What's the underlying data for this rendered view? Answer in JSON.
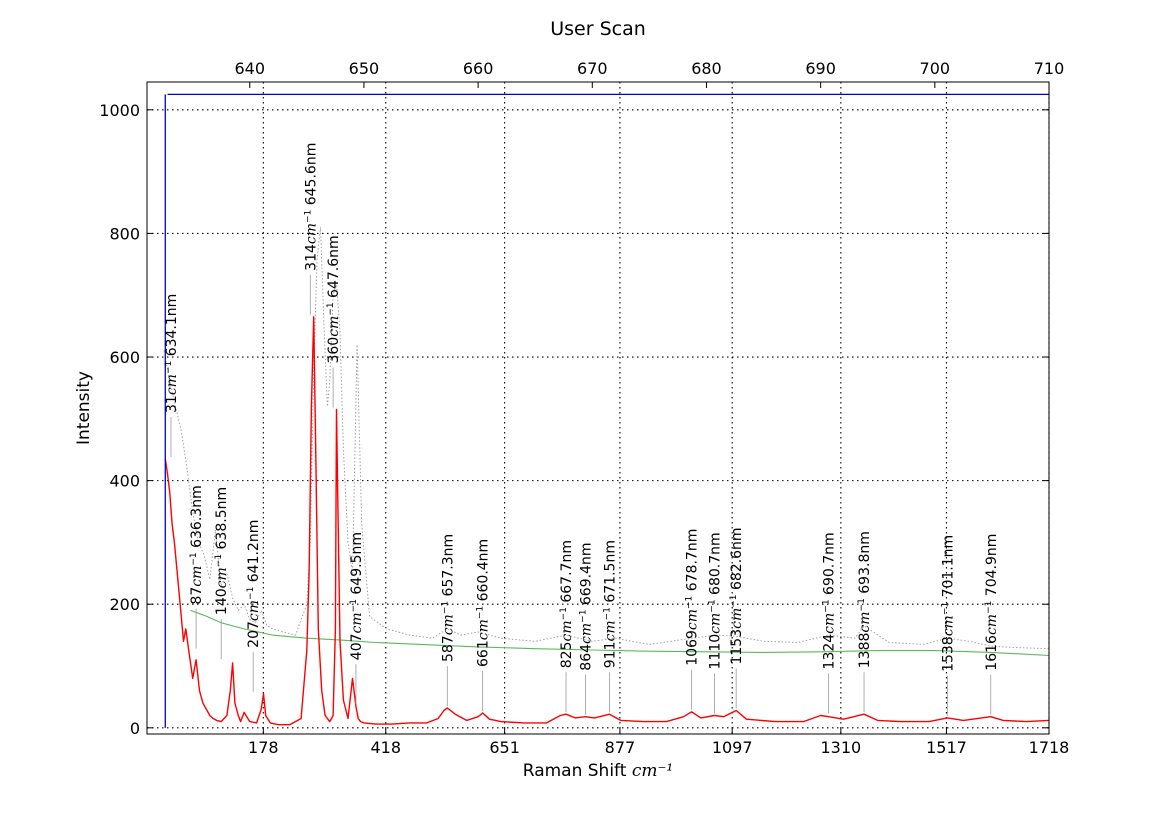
{
  "chart_data": {
    "type": "line",
    "title": "User Scan",
    "xlabel": "Raman Shift",
    "xlabel_unit": "cm⁻¹",
    "ylabel": "Intensity",
    "top_axis_ticks": [
      "640",
      "650",
      "660",
      "670",
      "680",
      "690",
      "700",
      "710"
    ],
    "bottom_axis_ticks": [
      "178",
      "418",
      "651",
      "877",
      "1097",
      "1310",
      "1517",
      "1718"
    ],
    "y_axis_ticks": [
      "0",
      "200",
      "400",
      "600",
      "800",
      "1000"
    ],
    "top_axis_range_nm": [
      631,
      710
    ],
    "bottom_axis_range_cm": [
      -50,
      1718
    ],
    "ylim": [
      -10,
      1045
    ],
    "grid": true,
    "colors": {
      "spectrum": "#ff0000",
      "raw": "#a0a0a0",
      "baseline": "#5cb85c",
      "markers": "#0000cc"
    },
    "series": [
      {
        "key": "processed",
        "color": "#ff0000",
        "x_nm": [
          632.6,
          632.8,
          633.0,
          633.2,
          633.4,
          633.6,
          633.8,
          634.0,
          634.2,
          634.4,
          634.7,
          635.0,
          635.3,
          635.6,
          635.9,
          636.2,
          636.5,
          636.8,
          637.1,
          637.5,
          638.0,
          638.3,
          638.5,
          638.7,
          639.0,
          639.2,
          639.5,
          640.0,
          640.6,
          641.0,
          641.2,
          641.4,
          641.8,
          642.5,
          643.5,
          644.5,
          645.0,
          645.2,
          645.4,
          645.6,
          645.8,
          646.0,
          646.3,
          646.6,
          647.0,
          647.3,
          647.5,
          647.6,
          647.7,
          647.9,
          648.2,
          648.6,
          649.0,
          649.3,
          649.5,
          649.7,
          650.0,
          651.0,
          652.5,
          654.0,
          655.5,
          656.5,
          657.0,
          657.3,
          658.0,
          659.0,
          660.0,
          660.4,
          661.0,
          662.0,
          664.0,
          666.0,
          667.2,
          667.7,
          668.5,
          669.4,
          670.2,
          671.5,
          672.5,
          674.5,
          676.5,
          678.0,
          678.7,
          679.5,
          680.7,
          681.5,
          682.6,
          683.5,
          686.0,
          688.5,
          690.0,
          690.7,
          692.0,
          693.8,
          695.0,
          697.0,
          699.5,
          701.1,
          702.5,
          704.9,
          706.0,
          708.0,
          710.0
        ],
        "y": [
          435,
          410,
          380,
          330,
          300,
          260,
          220,
          180,
          140,
          160,
          120,
          80,
          110,
          60,
          40,
          30,
          20,
          15,
          12,
          10,
          20,
          60,
          105,
          40,
          20,
          10,
          25,
          10,
          8,
          30,
          55,
          20,
          8,
          5,
          5,
          15,
          125,
          250,
          520,
          665,
          420,
          160,
          60,
          20,
          10,
          20,
          160,
          515,
          380,
          140,
          45,
          15,
          80,
          35,
          15,
          10,
          8,
          6,
          6,
          8,
          8,
          15,
          28,
          32,
          22,
          12,
          18,
          24,
          14,
          10,
          8,
          8,
          20,
          22,
          16,
          18,
          16,
          22,
          12,
          10,
          10,
          18,
          26,
          16,
          20,
          18,
          28,
          14,
          10,
          10,
          20,
          18,
          14,
          22,
          12,
          10,
          10,
          16,
          12,
          18,
          12,
          10,
          12
        ]
      },
      {
        "key": "raw",
        "color": "#a0a0a0",
        "x_nm": [
          632.5,
          633.0,
          633.5,
          634.0,
          634.5,
          635.0,
          635.5,
          636.0,
          636.5,
          637.0,
          637.5,
          638.0,
          638.5,
          639.0,
          639.5,
          640.0,
          640.5,
          641.0,
          641.5,
          642.0,
          643.0,
          644.0,
          645.0,
          645.3,
          645.6,
          645.9,
          646.2,
          646.5,
          646.8,
          647.0,
          647.3,
          647.6,
          647.9,
          648.2,
          648.6,
          649.0,
          649.4,
          649.8,
          650.5,
          652.0,
          654.0,
          656.0,
          657.3,
          658.5,
          660.0,
          662.0,
          665.0,
          667.7,
          670.0,
          672.0,
          675.0,
          678.7,
          681.0,
          682.6,
          685.0,
          688.0,
          690.7,
          693.0,
          693.8,
          696.0,
          699.0,
          701.1,
          703.0,
          705.0,
          707.0,
          710.0
        ],
        "y": [
          610,
          560,
          520,
          480,
          420,
          350,
          300,
          280,
          240,
          320,
          230,
          250,
          210,
          190,
          200,
          175,
          170,
          190,
          165,
          160,
          155,
          150,
          200,
          300,
          580,
          760,
          810,
          650,
          520,
          560,
          700,
          720,
          640,
          450,
          300,
          250,
          620,
          330,
          180,
          160,
          150,
          145,
          160,
          150,
          155,
          145,
          140,
          150,
          140,
          145,
          135,
          145,
          150,
          148,
          140,
          138,
          150,
          145,
          165,
          138,
          135,
          145,
          140,
          132,
          130,
          128
        ]
      },
      {
        "key": "baseline",
        "color": "#5cb85c",
        "x_nm": [
          634.8,
          636.0,
          637.5,
          639.5,
          642.0,
          645.0,
          648.0,
          651.0,
          655.0,
          660.0,
          665.0,
          670.0,
          675.0,
          680.0,
          685.0,
          690.0,
          695.0,
          700.0,
          705.0,
          710.0
        ],
        "y": [
          190,
          182,
          170,
          160,
          150,
          145,
          142,
          138,
          135,
          131,
          128,
          126,
          124,
          123,
          122,
          123,
          125,
          125,
          122,
          117
        ]
      }
    ],
    "vertical_marker": {
      "x_nm": 632.6,
      "y_range": [
        0,
        1025
      ]
    },
    "horizontal_marker": {
      "y": 1025,
      "x_range_nm": [
        632.8,
        710
      ]
    },
    "annotations": [
      {
        "x_nm": 633.1,
        "y": 435,
        "cm": "31",
        "nm": "634.1nm"
      },
      {
        "x_nm": 635.3,
        "y": 125,
        "cm": "87",
        "nm": "636.3nm"
      },
      {
        "x_nm": 637.5,
        "y": 108,
        "cm": "140",
        "nm": "638.5nm"
      },
      {
        "x_nm": 640.3,
        "y": 55,
        "cm": "207",
        "nm": "641.2nm"
      },
      {
        "x_nm": 645.3,
        "y": 665,
        "cm": "314",
        "nm": "645.6nm"
      },
      {
        "x_nm": 647.3,
        "y": 515,
        "cm": "360",
        "nm": "647.6nm"
      },
      {
        "x_nm": 649.3,
        "y": 35,
        "cm": "407",
        "nm": "649.5nm"
      },
      {
        "x_nm": 657.3,
        "y": 32,
        "cm": "587",
        "nm": "657.3nm"
      },
      {
        "x_nm": 660.4,
        "y": 24,
        "cm": "661",
        "nm": "660.4nm"
      },
      {
        "x_nm": 667.7,
        "y": 22,
        "cm": "825",
        "nm": "667.7nm"
      },
      {
        "x_nm": 669.4,
        "y": 18,
        "cm": "864",
        "nm": "669.4nm"
      },
      {
        "x_nm": 671.5,
        "y": 22,
        "cm": "911",
        "nm": "671.5nm"
      },
      {
        "x_nm": 678.7,
        "y": 26,
        "cm": "1069",
        "nm": "678.7nm"
      },
      {
        "x_nm": 680.7,
        "y": 20,
        "cm": "1110",
        "nm": "680.7nm"
      },
      {
        "x_nm": 682.6,
        "y": 28,
        "cm": "1153",
        "nm": "682.6nm"
      },
      {
        "x_nm": 690.7,
        "y": 20,
        "cm": "1324",
        "nm": "690.7nm"
      },
      {
        "x_nm": 693.8,
        "y": 22,
        "cm": "1388",
        "nm": "693.8nm"
      },
      {
        "x_nm": 701.1,
        "y": 16,
        "cm": "1538",
        "nm": "701.1nm"
      },
      {
        "x_nm": 704.9,
        "y": 18,
        "cm": "1616",
        "nm": "704.9nm"
      }
    ]
  }
}
